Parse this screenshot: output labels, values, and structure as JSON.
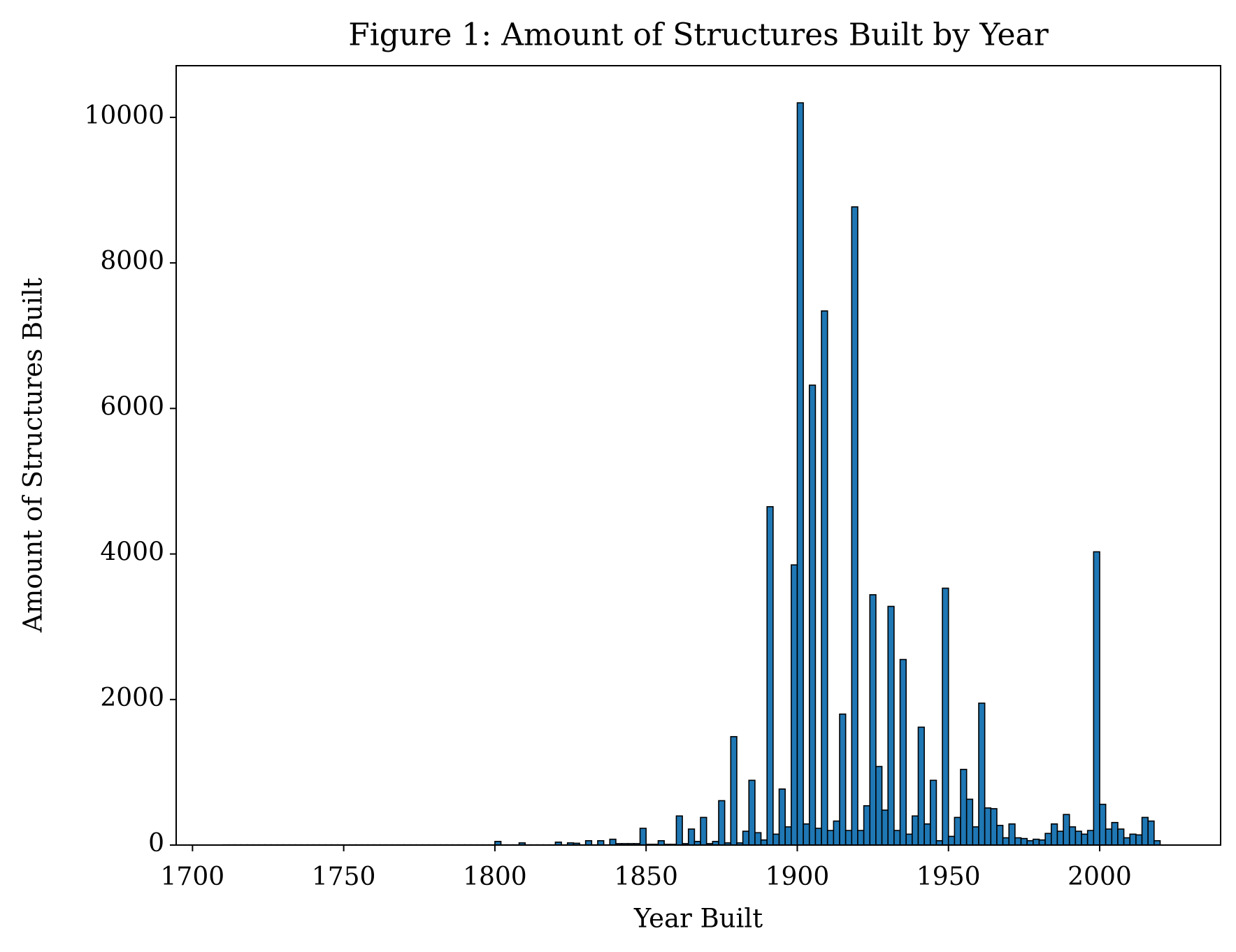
{
  "chart_data": {
    "type": "histogram",
    "title": "Figure 1: Amount of Structures Built by Year",
    "xlabel": "Year Built",
    "ylabel": "Amount of Structures Built",
    "color": "#1f77b4",
    "edgecolor": "#000000",
    "grid": false,
    "xlim": [
      1694.6,
      2040
    ],
    "ylim": [
      0,
      10710
    ],
    "xticks": [
      1700,
      1750,
      1800,
      1850,
      1900,
      1950,
      2000
    ],
    "yticks": [
      0,
      2000,
      4000,
      6000,
      8000,
      10000
    ],
    "bins": [
      1710,
      1712,
      1714,
      1716,
      1718,
      1720,
      1722,
      1724,
      1726,
      1728,
      1730,
      1732,
      1734,
      1736,
      1738,
      1740,
      1742,
      1744,
      1746,
      1748,
      1750,
      1752,
      1754,
      1756,
      1758,
      1760,
      1762,
      1764,
      1766,
      1768,
      1770,
      1772,
      1774,
      1776,
      1778,
      1780,
      1782,
      1784,
      1786,
      1788,
      1790,
      1792,
      1794,
      1796,
      1798,
      1800,
      1802,
      1804,
      1806,
      1808,
      1810,
      1812,
      1814,
      1816,
      1818,
      1820,
      1822,
      1824,
      1826,
      1828,
      1830,
      1832,
      1834,
      1836,
      1838,
      1840,
      1842,
      1844,
      1846,
      1848,
      1850,
      1852,
      1854,
      1856,
      1858,
      1860,
      1862,
      1864,
      1866,
      1868,
      1870,
      1872,
      1874,
      1876,
      1878,
      1880,
      1882,
      1884,
      1886,
      1888,
      1890,
      1892,
      1894,
      1896,
      1898,
      1900,
      1902,
      1904,
      1906,
      1908,
      1910,
      1912,
      1914,
      1916,
      1918,
      1920,
      1922,
      1924,
      1926,
      1928,
      1930,
      1932,
      1934,
      1936,
      1938,
      1940,
      1942,
      1944,
      1946,
      1948,
      1950,
      1952,
      1954,
      1956,
      1958,
      1960,
      1962,
      1964,
      1966,
      1968,
      1970,
      1972,
      1974,
      1976,
      1978,
      1980,
      1982,
      1984,
      1986,
      1988,
      1990,
      1992,
      1994,
      1996,
      1998,
      2000,
      2002,
      2004,
      2006,
      2008,
      2010,
      2012,
      2014,
      2016,
      2018,
      2020
    ],
    "values": [
      3,
      3,
      3,
      3,
      3,
      3,
      3,
      3,
      3,
      3,
      3,
      3,
      3,
      3,
      3,
      3,
      3,
      3,
      3,
      3,
      3,
      3,
      3,
      3,
      3,
      3,
      3,
      3,
      3,
      3,
      3,
      3,
      3,
      3,
      3,
      3,
      3,
      3,
      3,
      3,
      3,
      3,
      3,
      3,
      3,
      50,
      3,
      3,
      3,
      30,
      3,
      3,
      3,
      3,
      3,
      40,
      3,
      30,
      25,
      3,
      60,
      3,
      60,
      3,
      80,
      20,
      20,
      20,
      20,
      230,
      10,
      10,
      60,
      10,
      10,
      400,
      20,
      220,
      50,
      380,
      20,
      50,
      610,
      30,
      1490,
      30,
      190,
      890,
      170,
      70,
      4650,
      150,
      770,
      250,
      3850,
      10200,
      290,
      6320,
      230,
      7340,
      200,
      330,
      1800,
      200,
      8770,
      200,
      540,
      3440,
      1080,
      480,
      3280,
      200,
      2550,
      150,
      400,
      1620,
      290,
      890,
      60,
      3530,
      120,
      380,
      1040,
      630,
      250,
      1950,
      510,
      500,
      270,
      100,
      290,
      100,
      90,
      60,
      80,
      70,
      160,
      290,
      190,
      420,
      250,
      190,
      150,
      200,
      4030,
      560,
      220,
      310,
      220,
      100,
      150,
      140,
      380,
      330,
      60
    ]
  }
}
